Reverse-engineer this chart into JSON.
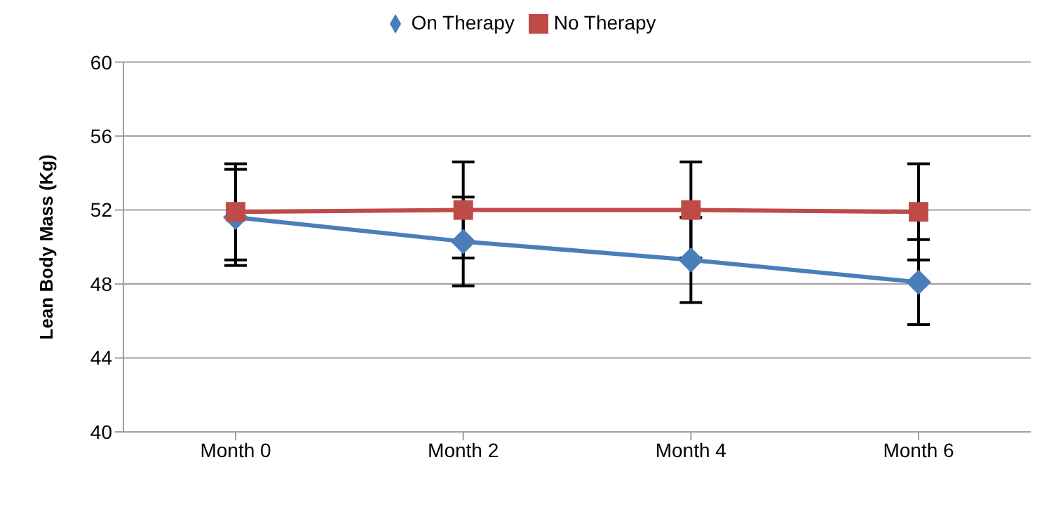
{
  "chart_data": {
    "type": "line",
    "ylabel": "Lean Body Mass  (Kg)",
    "categories": [
      "Month 0",
      "Month 2",
      "Month 4",
      "Month 6"
    ],
    "series": [
      {
        "name": "On Therapy",
        "color": "#4a7ebb",
        "values": [
          51.6,
          50.3,
          49.3,
          48.1
        ],
        "errors": [
          2.6,
          2.4,
          2.3,
          2.3
        ],
        "marker": "diamond"
      },
      {
        "name": "No Therapy",
        "color": "#be4b48",
        "values": [
          51.9,
          52.0,
          52.0,
          51.9
        ],
        "errors": [
          2.6,
          2.6,
          2.6,
          2.6
        ],
        "marker": "square"
      }
    ],
    "ylim": [
      40,
      60
    ],
    "yticks": [
      40,
      44,
      48,
      52,
      56,
      60
    ],
    "grid": "y",
    "legend": "top",
    "line_style": "solid"
  }
}
